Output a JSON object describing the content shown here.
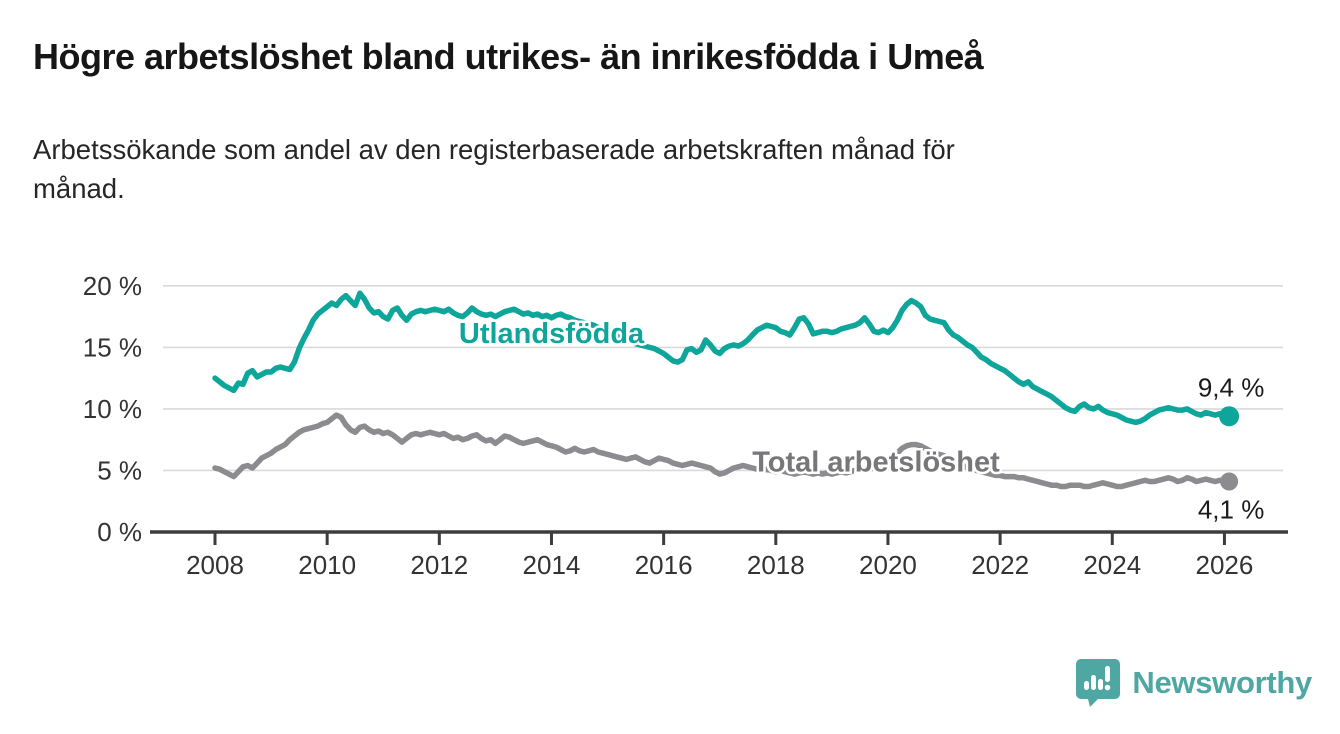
{
  "header": {
    "title": "Högre arbetslöshet bland utrikes- än inrikesfödda i Umeå",
    "subtitle": "Arbetssökande som andel av den registerbaserade arbetskraften månad för månad."
  },
  "footer": {
    "brand": "Newsworthy",
    "brand_color": "#4ea7a2",
    "logo_icon": "speech-bubble-bar-chart-icon"
  },
  "chart_data": {
    "type": "line",
    "title": "Högre arbetslöshet bland utrikes- än inrikesfödda i Umeå",
    "subtitle": "Arbetssökande som andel av den registerbaserade arbetskraften månad för månad.",
    "x_start_year": 2008,
    "frequency": "monthly",
    "xlim": [
      2006.85,
      2027.2
    ],
    "ylim": [
      0,
      21
    ],
    "grid": "horizontal",
    "grid_color": "#dadada",
    "axis_color": "#3d3d3d",
    "tick_color": "#333333",
    "end_label_color": "#1a1a1a",
    "xticks": [
      {
        "value": 2008,
        "label": "2008"
      },
      {
        "value": 2010,
        "label": "2010"
      },
      {
        "value": 2012,
        "label": "2012"
      },
      {
        "value": 2014,
        "label": "2014"
      },
      {
        "value": 2016,
        "label": "2016"
      },
      {
        "value": 2018,
        "label": "2018"
      },
      {
        "value": 2020,
        "label": "2020"
      },
      {
        "value": 2022,
        "label": "2022"
      },
      {
        "value": 2024,
        "label": "2024"
      },
      {
        "value": 2026,
        "label": "2026"
      }
    ],
    "yticks": [
      {
        "value": 0,
        "label": "0 %"
      },
      {
        "value": 5,
        "label": "5 %"
      },
      {
        "value": 10,
        "label": "10 %"
      },
      {
        "value": 15,
        "label": "15 %"
      },
      {
        "value": 20,
        "label": "20 %"
      }
    ],
    "series": [
      {
        "name": "Utlandsfödda",
        "color": "#0ea59a",
        "label_color": "#0ea59a",
        "label_pos": {
          "x_year": 2012.35,
          "y_value": 15.35
        },
        "end_label": "9,4 %",
        "end_value": 9.4,
        "end_label_above": true,
        "values": [
          12.5,
          12.2,
          11.9,
          11.7,
          11.5,
          12.1,
          12.0,
          12.9,
          13.1,
          12.6,
          12.8,
          13.0,
          13.0,
          13.3,
          13.4,
          13.3,
          13.2,
          13.8,
          14.9,
          15.7,
          16.4,
          17.2,
          17.7,
          18.0,
          18.3,
          18.6,
          18.4,
          18.9,
          19.2,
          18.8,
          18.4,
          19.4,
          18.9,
          18.2,
          17.8,
          17.9,
          17.5,
          17.3,
          18.0,
          18.2,
          17.6,
          17.2,
          17.7,
          17.9,
          18.0,
          17.9,
          18.0,
          18.1,
          18.0,
          17.9,
          18.1,
          17.8,
          17.6,
          17.5,
          17.8,
          18.2,
          17.9,
          17.7,
          17.6,
          17.7,
          17.5,
          17.7,
          17.9,
          18.0,
          18.1,
          17.9,
          17.7,
          17.8,
          17.6,
          17.7,
          17.5,
          17.6,
          17.4,
          17.6,
          17.7,
          17.5,
          17.4,
          17.2,
          17.1,
          17.0,
          16.9,
          16.8,
          16.6,
          16.5,
          16.3,
          16.1,
          15.9,
          15.8,
          15.6,
          15.5,
          15.3,
          15.2,
          15.1,
          15.0,
          14.9,
          14.7,
          14.5,
          14.2,
          13.9,
          13.8,
          14.0,
          14.8,
          14.9,
          14.6,
          14.8,
          15.6,
          15.2,
          14.7,
          14.5,
          14.9,
          15.1,
          15.2,
          15.1,
          15.3,
          15.6,
          16.0,
          16.4,
          16.6,
          16.8,
          16.7,
          16.6,
          16.3,
          16.2,
          16.0,
          16.6,
          17.3,
          17.4,
          16.9,
          16.1,
          16.2,
          16.3,
          16.3,
          16.2,
          16.3,
          16.5,
          16.6,
          16.7,
          16.8,
          17.0,
          17.4,
          16.9,
          16.3,
          16.2,
          16.4,
          16.2,
          16.6,
          17.2,
          18.0,
          18.5,
          18.8,
          18.6,
          18.3,
          17.6,
          17.3,
          17.2,
          17.1,
          17.0,
          16.4,
          16.0,
          15.8,
          15.5,
          15.2,
          15.0,
          14.6,
          14.2,
          14.0,
          13.7,
          13.5,
          13.3,
          13.1,
          12.8,
          12.5,
          12.2,
          12.0,
          12.2,
          11.8,
          11.6,
          11.4,
          11.2,
          11.0,
          10.7,
          10.4,
          10.1,
          9.9,
          9.8,
          10.2,
          10.4,
          10.1,
          10.0,
          10.2,
          9.9,
          9.7,
          9.6,
          9.5,
          9.3,
          9.1,
          9.0,
          8.9,
          9.0,
          9.2,
          9.5,
          9.7,
          9.9,
          10.0,
          10.1,
          10.0,
          9.9,
          9.9,
          10.0,
          9.8,
          9.6,
          9.5,
          9.7,
          9.6,
          9.5,
          9.6,
          9.5,
          9.4
        ]
      },
      {
        "name": "Total arbetslöshet",
        "color": "#8c8c90",
        "label_color": "#76767b",
        "label_pos": {
          "x_year": 2017.58,
          "y_value": 4.9
        },
        "end_label": "4,1 %",
        "end_value": 4.1,
        "end_label_above": false,
        "values": [
          5.2,
          5.1,
          4.9,
          4.7,
          4.5,
          4.9,
          5.3,
          5.4,
          5.2,
          5.6,
          6.0,
          6.2,
          6.4,
          6.7,
          6.9,
          7.1,
          7.5,
          7.8,
          8.1,
          8.3,
          8.4,
          8.5,
          8.6,
          8.8,
          8.9,
          9.2,
          9.5,
          9.3,
          8.7,
          8.3,
          8.1,
          8.5,
          8.6,
          8.3,
          8.1,
          8.2,
          8.0,
          8.1,
          7.9,
          7.6,
          7.3,
          7.6,
          7.9,
          8.0,
          7.9,
          8.0,
          8.1,
          8.0,
          7.9,
          8.0,
          7.8,
          7.6,
          7.7,
          7.5,
          7.6,
          7.8,
          7.9,
          7.6,
          7.4,
          7.5,
          7.2,
          7.5,
          7.8,
          7.7,
          7.5,
          7.3,
          7.2,
          7.3,
          7.4,
          7.5,
          7.3,
          7.1,
          7.0,
          6.9,
          6.7,
          6.5,
          6.6,
          6.8,
          6.6,
          6.5,
          6.6,
          6.7,
          6.5,
          6.4,
          6.3,
          6.2,
          6.1,
          6.0,
          5.9,
          6.0,
          6.1,
          5.9,
          5.7,
          5.6,
          5.8,
          6.0,
          5.9,
          5.8,
          5.6,
          5.5,
          5.4,
          5.5,
          5.6,
          5.5,
          5.4,
          5.3,
          5.2,
          4.9,
          4.7,
          4.8,
          5.0,
          5.2,
          5.3,
          5.4,
          5.3,
          5.2,
          5.1,
          5.0,
          5.1,
          5.0,
          4.9,
          5.0,
          4.9,
          4.8,
          4.7,
          4.8,
          4.9,
          4.8,
          4.7,
          4.8,
          4.7,
          4.8,
          4.7,
          4.8,
          4.9,
          4.8,
          4.9,
          5.0,
          5.1,
          5.0,
          5.1,
          5.2,
          5.3,
          5.5,
          5.6,
          5.9,
          6.4,
          6.8,
          7.0,
          7.1,
          7.1,
          7.0,
          6.8,
          6.6,
          6.4,
          6.3,
          6.2,
          6.0,
          5.8,
          5.6,
          5.4,
          5.2,
          5.1,
          5.0,
          4.9,
          4.8,
          4.7,
          4.6,
          4.6,
          4.5,
          4.5,
          4.5,
          4.4,
          4.4,
          4.3,
          4.2,
          4.1,
          4.0,
          3.9,
          3.8,
          3.8,
          3.7,
          3.7,
          3.8,
          3.8,
          3.8,
          3.7,
          3.7,
          3.8,
          3.9,
          4.0,
          3.9,
          3.8,
          3.7,
          3.7,
          3.8,
          3.9,
          4.0,
          4.1,
          4.2,
          4.1,
          4.1,
          4.2,
          4.3,
          4.4,
          4.3,
          4.1,
          4.2,
          4.4,
          4.3,
          4.1,
          4.2,
          4.3,
          4.2,
          4.1,
          4.2,
          4.2,
          4.1
        ]
      }
    ]
  }
}
